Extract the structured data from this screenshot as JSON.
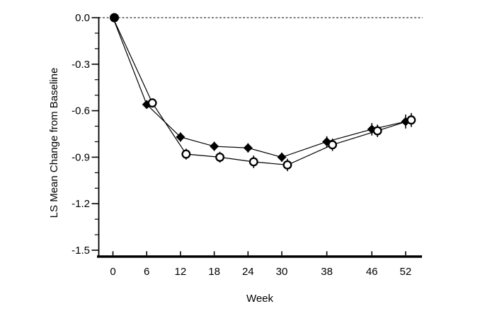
{
  "chart_data": {
    "type": "line",
    "title": "",
    "xlabel": "Week",
    "ylabel": "LS Mean Change from Baseline",
    "x_axis": {
      "tick_values": [
        0,
        6,
        12,
        18,
        24,
        30,
        38,
        46,
        52
      ],
      "tick_labels": [
        "0",
        "6",
        "12",
        "18",
        "24",
        "30",
        "38",
        "46",
        "52"
      ],
      "range_weeks": [
        -2.5,
        54.9
      ]
    },
    "y_axis": {
      "tick_values": [
        0.0,
        -0.3,
        -0.6,
        -0.9,
        -1.2,
        -1.5
      ],
      "tick_labels": [
        "0.0",
        "-0.3",
        "-0.6",
        "-0.9",
        "-1.2",
        "-1.5"
      ],
      "minor_tick_step": 0.1,
      "range": [
        -1.5,
        0.0
      ]
    },
    "reference_line": {
      "y": 0.0,
      "style": "dotted"
    },
    "baseline_point": {
      "week": 0,
      "value": 0.0,
      "marker": "filled-circle"
    },
    "series": [
      {
        "name": "filled-diamond",
        "marker": "filled-diamond",
        "line": "solid",
        "weeks": [
          0,
          6,
          12,
          18,
          24,
          30,
          38,
          46,
          52
        ],
        "values": [
          0.0,
          -0.56,
          -0.77,
          -0.83,
          -0.84,
          -0.9,
          -0.8,
          -0.72,
          -0.67
        ],
        "error": [
          0,
          0.025,
          0.03,
          0.03,
          0.03,
          0.03,
          0.035,
          0.04,
          0.045
        ],
        "x_display_offset_weeks": 0
      },
      {
        "name": "open-circle",
        "marker": "open-circle",
        "line": "solid",
        "weeks": [
          0,
          6,
          12,
          18,
          24,
          30,
          38,
          46,
          52
        ],
        "values": [
          0.0,
          -0.55,
          -0.88,
          -0.9,
          -0.93,
          -0.95,
          -0.82,
          -0.73,
          -0.66
        ],
        "error": [
          0,
          0.025,
          0.035,
          0.035,
          0.04,
          0.04,
          0.04,
          0.04,
          0.045
        ],
        "x_display_offset_weeks": 1
      }
    ],
    "legend": null,
    "grid": false,
    "colors": {
      "foreground": "#000000",
      "background": "#ffffff"
    }
  }
}
